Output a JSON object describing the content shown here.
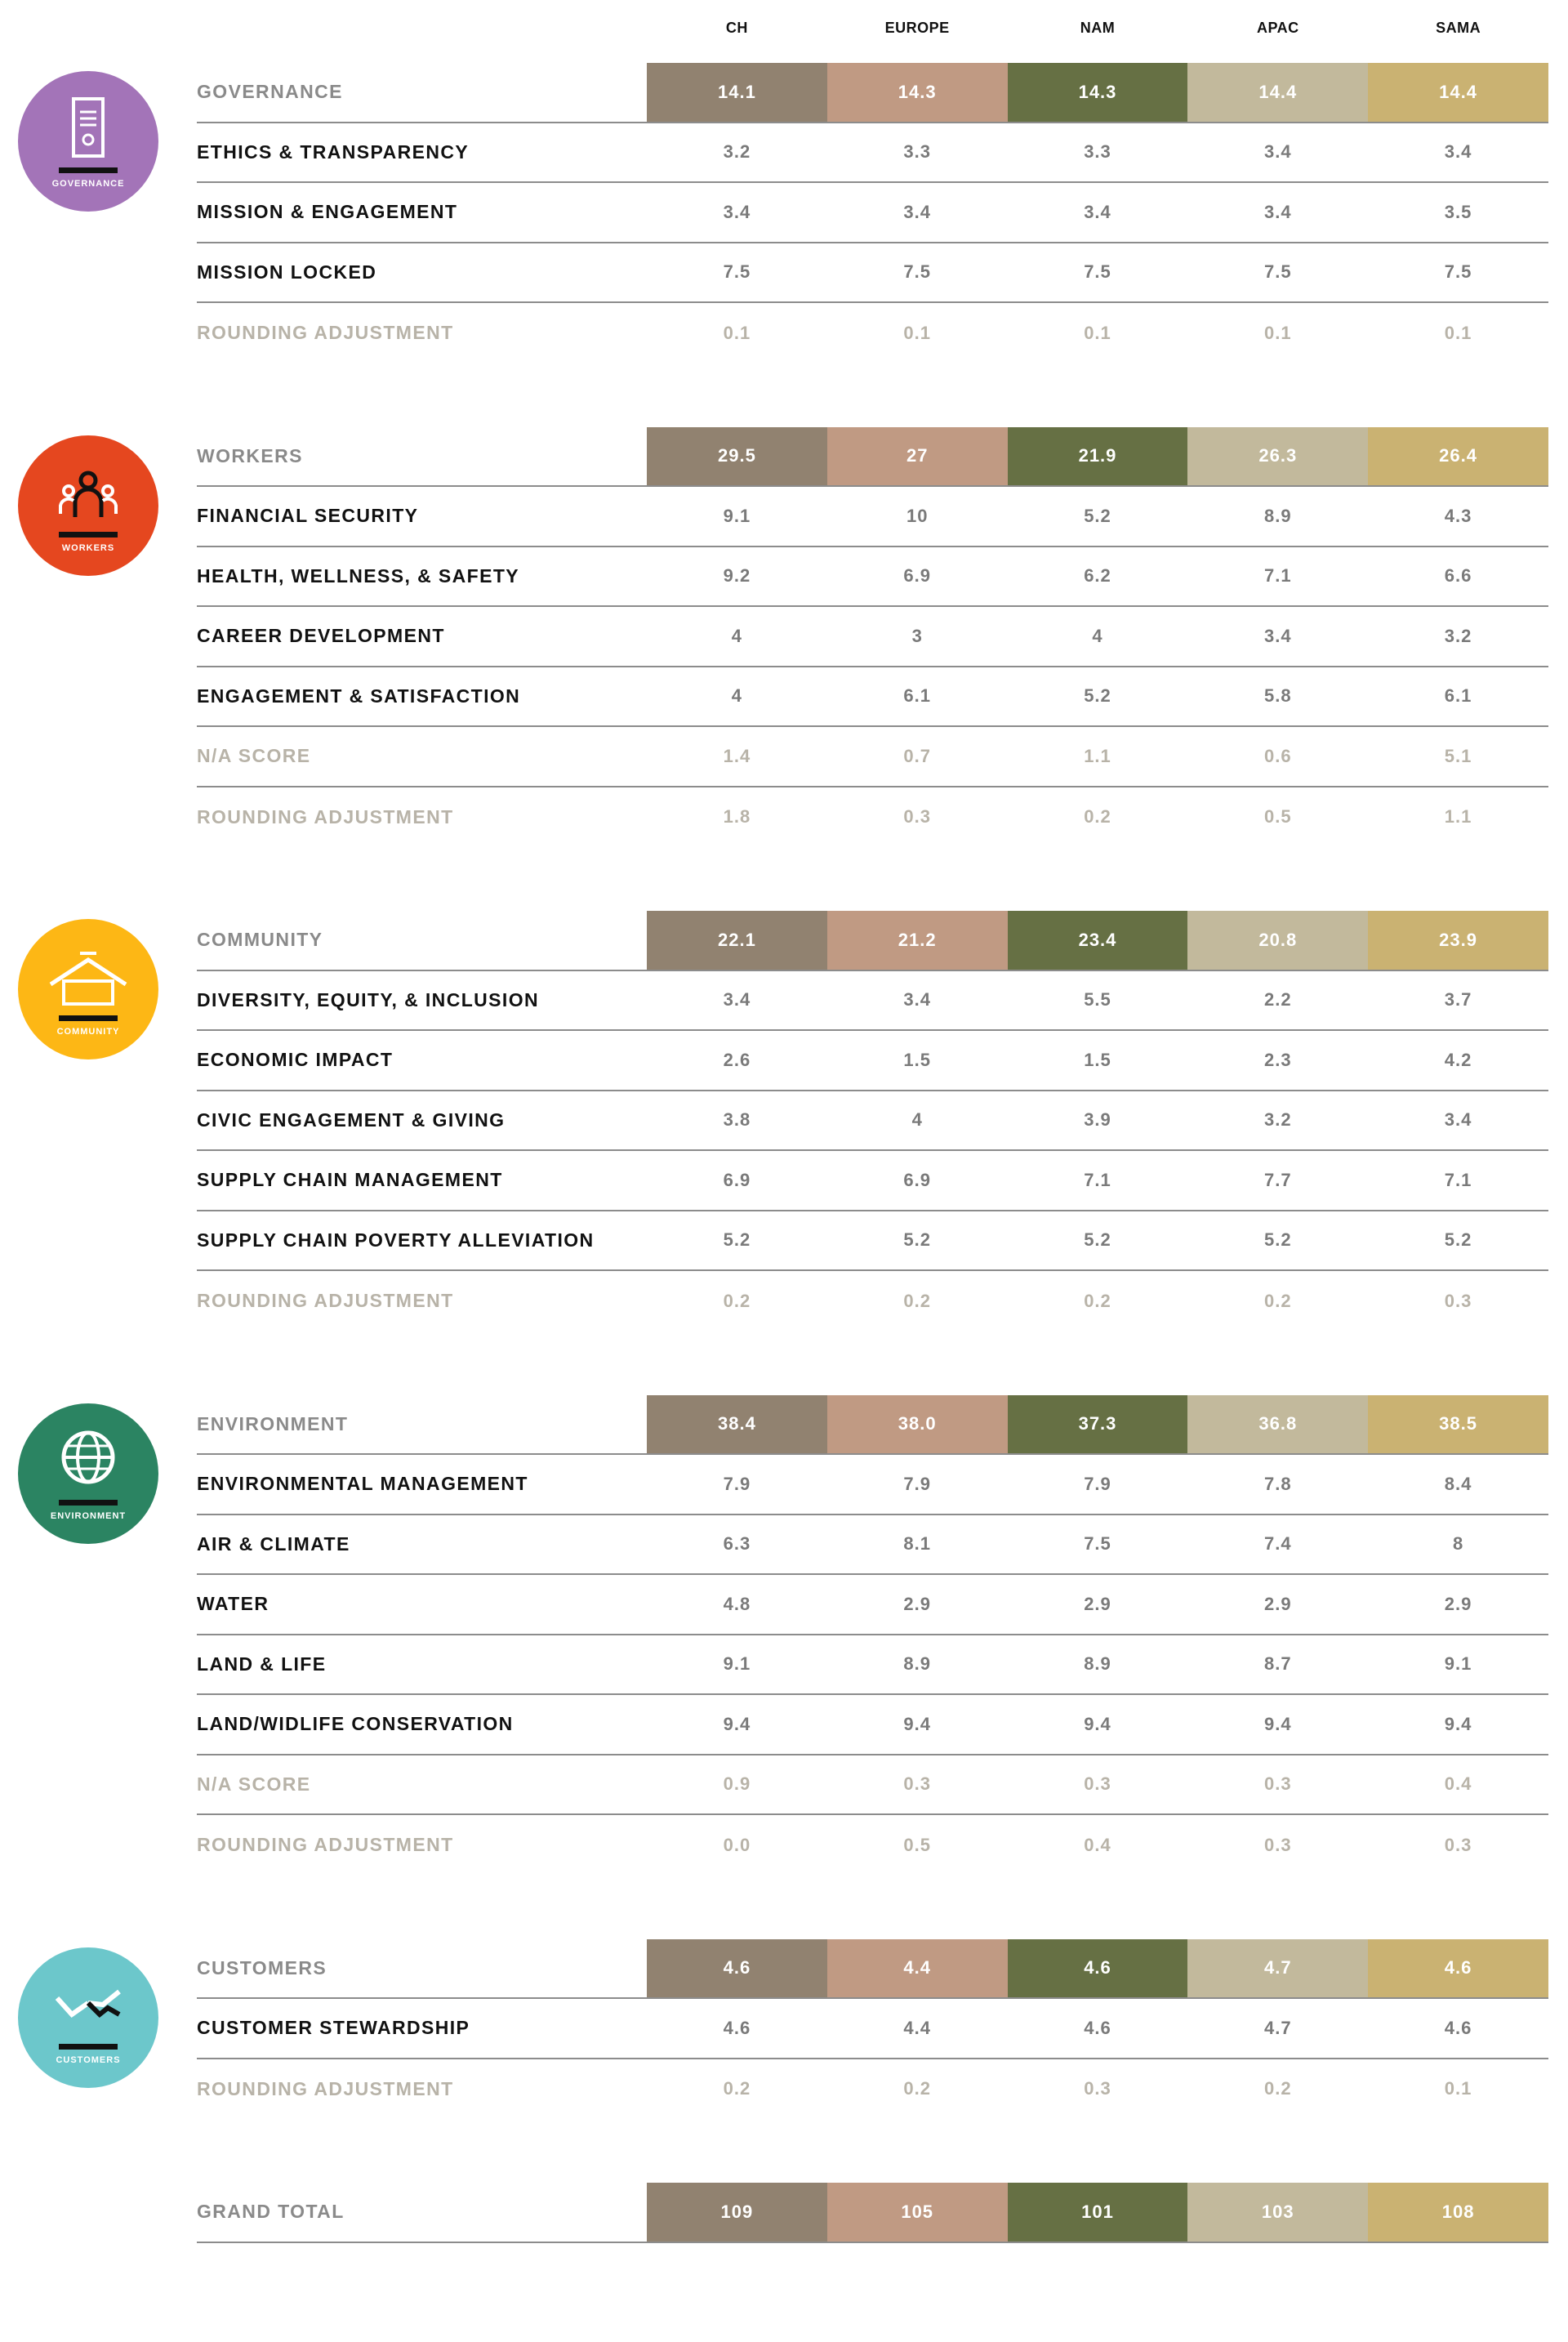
{
  "columns": [
    "CH",
    "EUROPE",
    "NAM",
    "APAC",
    "SAMA"
  ],
  "column_colors": [
    "#918270",
    "#c09a83",
    "#667044",
    "#c2b99c",
    "#cab272"
  ],
  "sections": [
    {
      "icon": "governance-icon",
      "icon_label": "GOVERNANCE",
      "icon_color": "#a374b8",
      "rows": [
        {
          "label": "GOVERNANCE",
          "type": "total",
          "values": [
            "14.1",
            "14.3",
            "14.3",
            "14.4",
            "14.4"
          ]
        },
        {
          "label": "ETHICS & TRANSPARENCY",
          "type": "item",
          "values": [
            "3.2",
            "3.3",
            "3.3",
            "3.4",
            "3.4"
          ]
        },
        {
          "label": "MISSION & ENGAGEMENT",
          "type": "item",
          "values": [
            "3.4",
            "3.4",
            "3.4",
            "3.4",
            "3.5"
          ]
        },
        {
          "label": "MISSION LOCKED",
          "type": "item",
          "values": [
            "7.5",
            "7.5",
            "7.5",
            "7.5",
            "7.5"
          ]
        },
        {
          "label": "ROUNDING ADJUSTMENT",
          "type": "adj",
          "values": [
            "0.1",
            "0.1",
            "0.1",
            "0.1",
            "0.1"
          ]
        }
      ]
    },
    {
      "icon": "workers-icon",
      "icon_label": "WORKERS",
      "icon_color": "#e5471f",
      "rows": [
        {
          "label": "WORKERS",
          "type": "total",
          "values": [
            "29.5",
            "27",
            "21.9",
            "26.3",
            "26.4"
          ]
        },
        {
          "label": "FINANCIAL SECURITY",
          "type": "item",
          "values": [
            "9.1",
            "10",
            "5.2",
            "8.9",
            "4.3"
          ]
        },
        {
          "label": "HEALTH, WELLNESS, & SAFETY",
          "type": "item",
          "values": [
            "9.2",
            "6.9",
            "6.2",
            "7.1",
            "6.6"
          ]
        },
        {
          "label": "CAREER DEVELOPMENT",
          "type": "item",
          "values": [
            "4",
            "3",
            "4",
            "3.4",
            "3.2"
          ]
        },
        {
          "label": "ENGAGEMENT & SATISFACTION",
          "type": "item",
          "values": [
            "4",
            "6.1",
            "5.2",
            "5.8",
            "6.1"
          ]
        },
        {
          "label": "N/A SCORE",
          "type": "adj",
          "values": [
            "1.4",
            "0.7",
            "1.1",
            "0.6",
            "5.1"
          ]
        },
        {
          "label": "ROUNDING ADJUSTMENT",
          "type": "adj",
          "values": [
            "1.8",
            "0.3",
            "0.2",
            "0.5",
            "1.1"
          ]
        }
      ]
    },
    {
      "icon": "community-icon",
      "icon_label": "COMMUNITY",
      "icon_color": "#fdb715",
      "rows": [
        {
          "label": "COMMUNITY",
          "type": "total",
          "values": [
            "22.1",
            "21.2",
            "23.4",
            "20.8",
            "23.9"
          ]
        },
        {
          "label": "DIVERSITY, EQUITY, & INCLUSION",
          "type": "item",
          "values": [
            "3.4",
            "3.4",
            "5.5",
            "2.2",
            "3.7"
          ]
        },
        {
          "label": "ECONOMIC IMPACT",
          "type": "item",
          "values": [
            "2.6",
            "1.5",
            "1.5",
            "2.3",
            "4.2"
          ]
        },
        {
          "label": "CIVIC ENGAGEMENT & GIVING",
          "type": "item",
          "values": [
            "3.8",
            "4",
            "3.9",
            "3.2",
            "3.4"
          ]
        },
        {
          "label": "SUPPLY CHAIN MANAGEMENT",
          "type": "item",
          "values": [
            "6.9",
            "6.9",
            "7.1",
            "7.7",
            "7.1"
          ]
        },
        {
          "label": "SUPPLY CHAIN POVERTY ALLEVIATION",
          "type": "item",
          "values": [
            "5.2",
            "5.2",
            "5.2",
            "5.2",
            "5.2"
          ]
        },
        {
          "label": "ROUNDING ADJUSTMENT",
          "type": "adj",
          "values": [
            "0.2",
            "0.2",
            "0.2",
            "0.2",
            "0.3"
          ]
        }
      ]
    },
    {
      "icon": "environment-icon",
      "icon_label": "ENVIRONMENT",
      "icon_color": "#2b8462",
      "rows": [
        {
          "label": "ENVIRONMENT",
          "type": "total",
          "values": [
            "38.4",
            "38.0",
            "37.3",
            "36.8",
            "38.5"
          ]
        },
        {
          "label": "ENVIRONMENTAL MANAGEMENT",
          "type": "item",
          "values": [
            "7.9",
            "7.9",
            "7.9",
            "7.8",
            "8.4"
          ]
        },
        {
          "label": "AIR & CLIMATE",
          "type": "item",
          "values": [
            "6.3",
            "8.1",
            "7.5",
            "7.4",
            "8"
          ]
        },
        {
          "label": "WATER",
          "type": "item",
          "values": [
            "4.8",
            "2.9",
            "2.9",
            "2.9",
            "2.9"
          ]
        },
        {
          "label": "LAND & LIFE",
          "type": "item",
          "values": [
            "9.1",
            "8.9",
            "8.9",
            "8.7",
            "9.1"
          ]
        },
        {
          "label": "LAND/WIDLIFE CONSERVATION",
          "type": "item",
          "values": [
            "9.4",
            "9.4",
            "9.4",
            "9.4",
            "9.4"
          ]
        },
        {
          "label": "N/A SCORE",
          "type": "adj",
          "values": [
            "0.9",
            "0.3",
            "0.3",
            "0.3",
            "0.4"
          ]
        },
        {
          "label": "ROUNDING ADJUSTMENT",
          "type": "adj",
          "values": [
            "0.0",
            "0.5",
            "0.4",
            "0.3",
            "0.3"
          ]
        }
      ]
    },
    {
      "icon": "customers-icon",
      "icon_label": "CUSTOMERS",
      "icon_color": "#6cc7cb",
      "rows": [
        {
          "label": "CUSTOMERS",
          "type": "total",
          "values": [
            "4.6",
            "4.4",
            "4.6",
            "4.7",
            "4.6"
          ]
        },
        {
          "label": "CUSTOMER STEWARDSHIP",
          "type": "item",
          "values": [
            "4.6",
            "4.4",
            "4.6",
            "4.7",
            "4.6"
          ]
        },
        {
          "label": "ROUNDING ADJUSTMENT",
          "type": "adj",
          "values": [
            "0.2",
            "0.2",
            "0.3",
            "0.2",
            "0.1"
          ]
        }
      ]
    },
    {
      "rows": [
        {
          "label": "GRAND TOTAL",
          "type": "total",
          "values": [
            "109",
            "105",
            "101",
            "103",
            "108"
          ]
        }
      ]
    }
  ]
}
